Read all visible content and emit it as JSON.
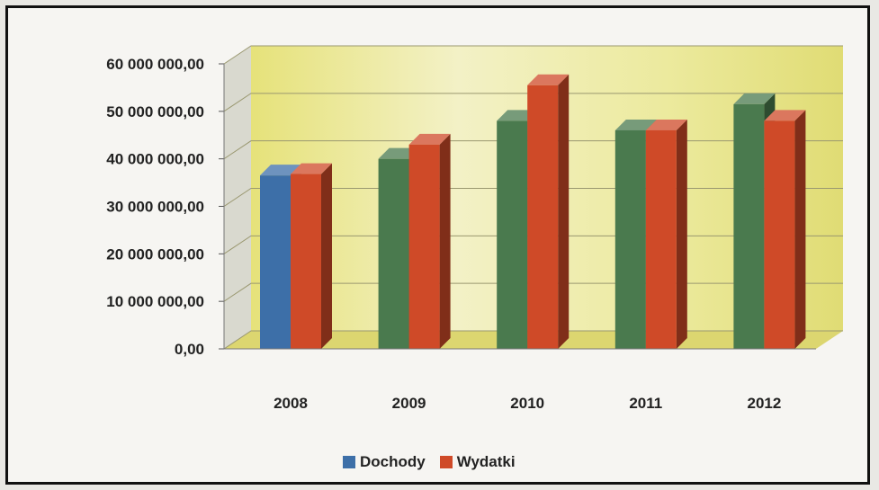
{
  "chart_data": {
    "type": "bar",
    "categories": [
      "2008",
      "2009",
      "2010",
      "2011",
      "2012"
    ],
    "series": [
      {
        "name": "Dochody",
        "values": [
          36500000,
          40000000,
          48000000,
          46000000,
          51500000
        ]
      },
      {
        "name": "Wydatki",
        "values": [
          36800000,
          43000000,
          55500000,
          46000000,
          48000000
        ]
      }
    ],
    "ylim": [
      0,
      60000000
    ],
    "yticks": [
      "0,00",
      "10 000 000,00",
      "20 000 000,00",
      "30 000 000,00",
      "40 000 000,00",
      "50 000 000,00",
      "60 000 000,00"
    ],
    "legend": "bottom",
    "grid": true,
    "colors": {
      "dochody_2008": "#3d6fa8",
      "dochody": "#4a7a4e",
      "wydatki": "#cf4a28",
      "legend_dochody": "#3d6fa8",
      "legend_wydatki": "#cf4a28",
      "wall": "#e8e488",
      "floor": "#dcd670"
    }
  }
}
